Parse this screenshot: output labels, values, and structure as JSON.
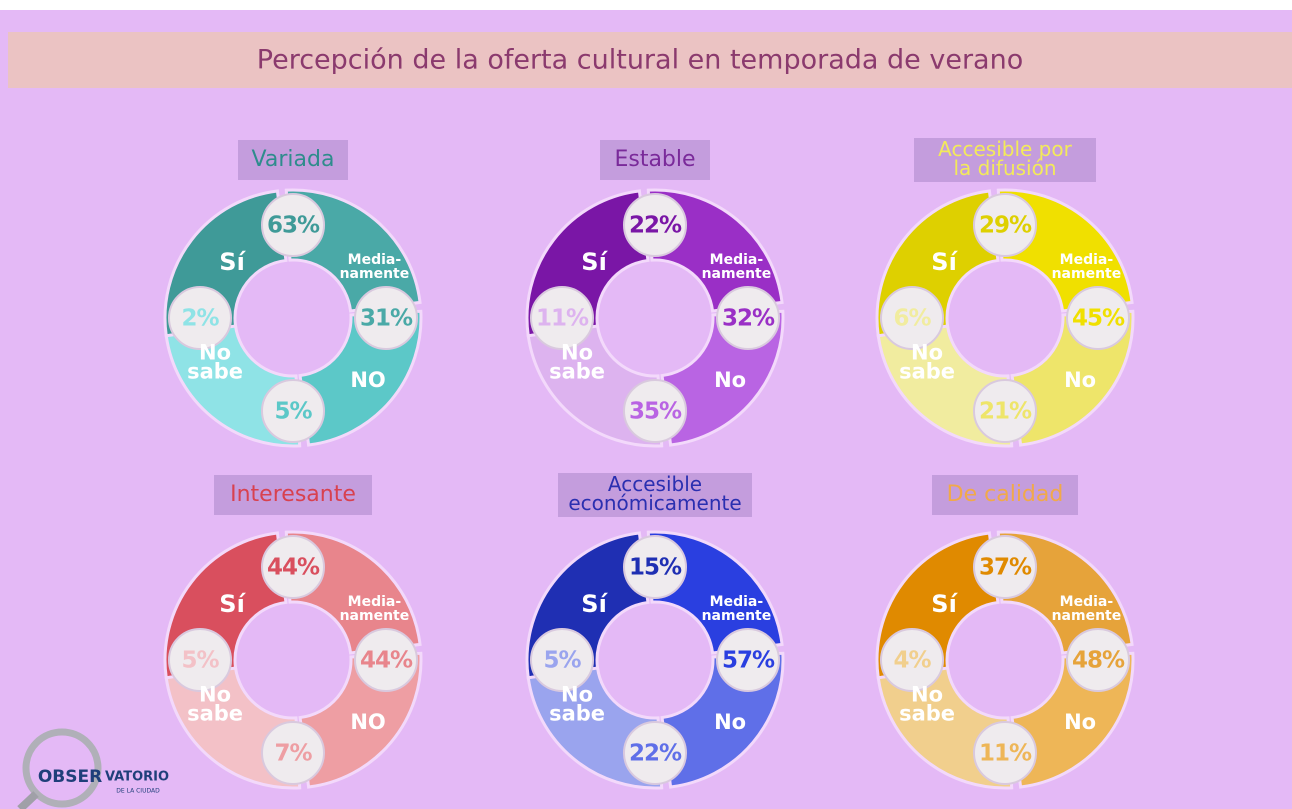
{
  "header": {
    "title": "Percepción de la oferta cultural en temporada de verano"
  },
  "panels": [
    {
      "title": [
        "Variada"
      ],
      "title_color": "#2e8c8c",
      "colors": [
        "#3f9a98",
        "#4aa9a7",
        "#5cc8c8",
        "#8fe3e6"
      ],
      "segments": [
        {
          "label": [
            "Sí"
          ],
          "value": "63%"
        },
        {
          "label": [
            "Media-",
            "namente"
          ],
          "value": "31%"
        },
        {
          "label": [
            "NO"
          ],
          "value": "5%"
        },
        {
          "label": [
            "No",
            "sabe"
          ],
          "value": "2%"
        }
      ]
    },
    {
      "title": [
        "Estable"
      ],
      "title_color": "#7a2a9a",
      "colors": [
        "#7a16a6",
        "#9a2fc6",
        "#b964e3",
        "#ddb3ef"
      ],
      "segments": [
        {
          "label": [
            "Sí"
          ],
          "value": "22%"
        },
        {
          "label": [
            "Media-",
            "namente"
          ],
          "value": "32%"
        },
        {
          "label": [
            "No"
          ],
          "value": "35%"
        },
        {
          "label": [
            "No",
            "sabe"
          ],
          "value": "11%"
        }
      ]
    },
    {
      "title": [
        "Accesible por",
        "la difusión"
      ],
      "title_color": "#f3ea5a",
      "colors": [
        "#ded000",
        "#f0e000",
        "#eee56a",
        "#f1ec9f"
      ],
      "segments": [
        {
          "label": [
            "Sí"
          ],
          "value": "29%"
        },
        {
          "label": [
            "Media-",
            "namente"
          ],
          "value": "45%"
        },
        {
          "label": [
            "No"
          ],
          "value": "21%"
        },
        {
          "label": [
            "No",
            "sabe"
          ],
          "value": "6%"
        }
      ]
    },
    {
      "title": [
        "Interesante"
      ],
      "title_color": "#d8414f",
      "colors": [
        "#d94f5e",
        "#e8858c",
        "#ee9ea3",
        "#f3c1c7"
      ],
      "segments": [
        {
          "label": [
            "Sí"
          ],
          "value": "44%"
        },
        {
          "label": [
            "Media-",
            "namente"
          ],
          "value": "44%"
        },
        {
          "label": [
            "NO"
          ],
          "value": "7%"
        },
        {
          "label": [
            "No",
            "sabe"
          ],
          "value": "5%"
        }
      ]
    },
    {
      "title": [
        "Accesible",
        "económicamente"
      ],
      "title_color": "#2a2fb0",
      "colors": [
        "#1f2fb3",
        "#2a3fe0",
        "#5f6fe8",
        "#9aa4ee"
      ],
      "segments": [
        {
          "label": [
            "Sí"
          ],
          "value": "15%"
        },
        {
          "label": [
            "Media-",
            "namente"
          ],
          "value": "57%"
        },
        {
          "label": [
            "No"
          ],
          "value": "22%"
        },
        {
          "label": [
            "No",
            "sabe"
          ],
          "value": "5%"
        }
      ]
    },
    {
      "title": [
        "De calidad"
      ],
      "title_color": "#f1a94a",
      "colors": [
        "#e08a00",
        "#e6a33a",
        "#eeb657",
        "#f1cf8d"
      ],
      "segments": [
        {
          "label": [
            "Sí"
          ],
          "value": "37%"
        },
        {
          "label": [
            "Media-",
            "namente"
          ],
          "value": "48%"
        },
        {
          "label": [
            "No"
          ],
          "value": "11%"
        },
        {
          "label": [
            "No",
            "sabe"
          ],
          "value": "4%"
        }
      ]
    }
  ],
  "logo": {
    "part1": "OBSER",
    "part2": "VATORIO",
    "part3": "DE LA CIUDAD"
  }
}
